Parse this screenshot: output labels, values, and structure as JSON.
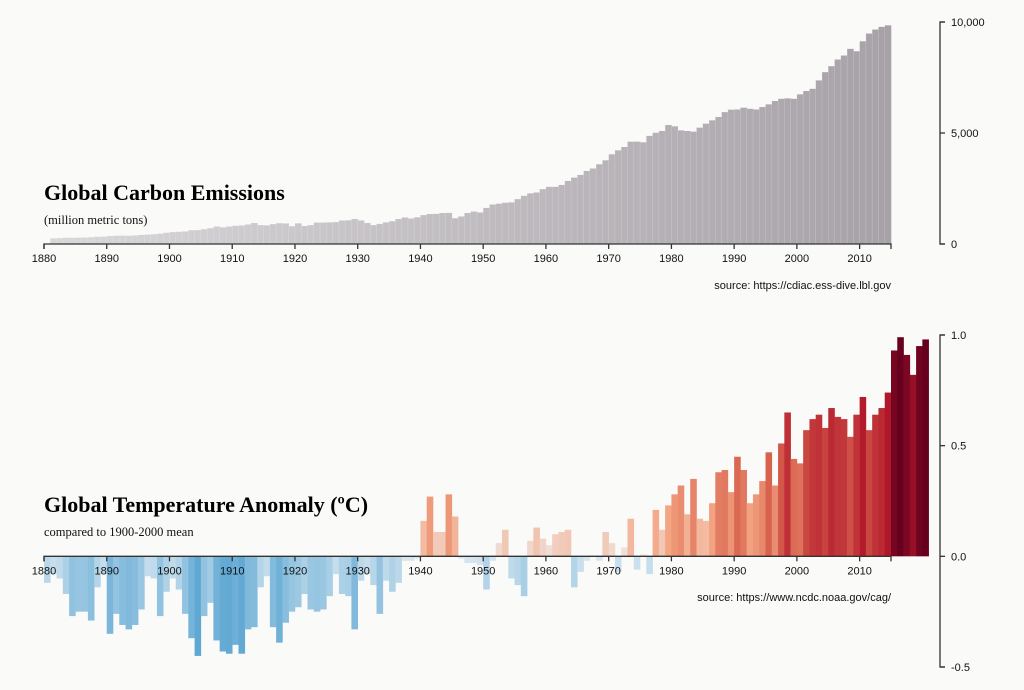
{
  "chart_data": [
    {
      "type": "bar",
      "title": "Global Carbon Emissions",
      "subtitle": "(million metric tons)",
      "source": "source: https://cdiac.ess-dive.lbl.gov",
      "x_start": 1881,
      "x_end": 2014,
      "xlim": [
        1880,
        2015
      ],
      "ylim": [
        0,
        10000
      ],
      "x_ticks": [
        "1880",
        "1890",
        "1900",
        "1910",
        "1920",
        "1930",
        "1940",
        "1950",
        "1960",
        "1970",
        "1980",
        "1990",
        "2000",
        "2010"
      ],
      "y_ticks": [
        "0",
        "5,000",
        "10,000"
      ],
      "y_tick_values": [
        0,
        5000,
        10000
      ],
      "y_axis_position": "right",
      "grid": false,
      "colors": {
        "start": "#d9d7d9",
        "end": "#a7a2a8"
      },
      "values": [
        255,
        265,
        280,
        280,
        285,
        290,
        305,
        325,
        330,
        355,
        370,
        375,
        370,
        385,
        410,
        420,
        440,
        465,
        505,
        535,
        550,
        565,
        620,
        625,
        665,
        710,
        785,
        750,
        785,
        820,
        835,
        880,
        945,
        850,
        840,
        895,
        935,
        925,
        800,
        930,
        810,
        850,
        965,
        965,
        975,
        985,
        1060,
        1065,
        1125,
        1060,
        945,
        850,
        905,
        975,
        1025,
        1125,
        1195,
        1150,
        1200,
        1300,
        1350,
        1355,
        1395,
        1400,
        1160,
        1240,
        1395,
        1460,
        1420,
        1625,
        1780,
        1815,
        1860,
        1875,
        2020,
        2170,
        2280,
        2320,
        2470,
        2575,
        2575,
        2660,
        2840,
        2990,
        3110,
        3290,
        3400,
        3590,
        3770,
        4040,
        4220,
        4370,
        4610,
        4610,
        4580,
        4870,
        5010,
        5090,
        5360,
        5300,
        5120,
        5090,
        5060,
        5240,
        5420,
        5570,
        5720,
        5940,
        6050,
        6060,
        6140,
        6090,
        6060,
        6170,
        6290,
        6440,
        6540,
        6560,
        6540,
        6740,
        6890,
        6990,
        7370,
        7740,
        8010,
        8310,
        8490,
        8790,
        8680,
        9130,
        9480,
        9660,
        9780,
        9850
      ]
    },
    {
      "type": "bar",
      "title": "Global Temperature Anomaly (ºC)",
      "subtitle": "compared to 1900-2000 mean",
      "source": "source: https://www.ncdc.noaa.gov/cag/",
      "x_start": 1880,
      "x_end": 2020,
      "xlim": [
        1880,
        2015
      ],
      "ylim": [
        -0.5,
        1.0
      ],
      "x_ticks": [
        "1880",
        "1890",
        "1900",
        "1910",
        "1920",
        "1930",
        "1940",
        "1950",
        "1960",
        "1970",
        "1980",
        "1990",
        "2000",
        "2010"
      ],
      "y_ticks": [
        "-0.5",
        "0.0",
        "0.5",
        "1.0"
      ],
      "y_tick_values": [
        -0.5,
        0,
        0.5,
        1.0
      ],
      "y_axis_position": "right",
      "grid": false,
      "color_scale": "diverging red-blue",
      "values": [
        -0.12,
        -0.08,
        -0.1,
        -0.17,
        -0.27,
        -0.25,
        -0.25,
        -0.29,
        -0.14,
        -0.08,
        -0.35,
        -0.26,
        -0.31,
        -0.33,
        -0.31,
        -0.24,
        -0.09,
        -0.1,
        -0.27,
        -0.16,
        -0.1,
        -0.15,
        -0.26,
        -0.37,
        -0.45,
        -0.27,
        -0.21,
        -0.38,
        -0.43,
        -0.44,
        -0.4,
        -0.44,
        -0.33,
        -0.32,
        -0.14,
        -0.09,
        -0.32,
        -0.39,
        -0.3,
        -0.25,
        -0.23,
        -0.17,
        -0.24,
        -0.25,
        -0.24,
        -0.18,
        -0.08,
        -0.17,
        -0.18,
        -0.33,
        -0.11,
        -0.08,
        -0.13,
        -0.26,
        -0.11,
        -0.16,
        -0.12,
        -0.02,
        -0.02,
        -0.01,
        0.16,
        0.27,
        0.11,
        0.11,
        0.28,
        0.18,
        -0.01,
        -0.03,
        -0.03,
        -0.04,
        -0.15,
        -0.02,
        0.06,
        0.12,
        -0.1,
        -0.13,
        -0.18,
        0.07,
        0.13,
        0.08,
        0.05,
        0.1,
        0.11,
        0.12,
        -0.14,
        -0.07,
        -0.02,
        0.0,
        -0.02,
        0.11,
        0.06,
        -0.07,
        0.04,
        0.17,
        -0.06,
        0.01,
        -0.08,
        0.21,
        0.12,
        0.23,
        0.28,
        0.32,
        0.19,
        0.35,
        0.17,
        0.16,
        0.24,
        0.38,
        0.39,
        0.29,
        0.45,
        0.39,
        0.24,
        0.28,
        0.34,
        0.47,
        0.32,
        0.51,
        0.65,
        0.44,
        0.42,
        0.57,
        0.62,
        0.64,
        0.58,
        0.67,
        0.63,
        0.62,
        0.54,
        0.64,
        0.72,
        0.57,
        0.64,
        0.67,
        0.74,
        0.93,
        0.99,
        0.91,
        0.82,
        0.95,
        0.98
      ]
    }
  ]
}
